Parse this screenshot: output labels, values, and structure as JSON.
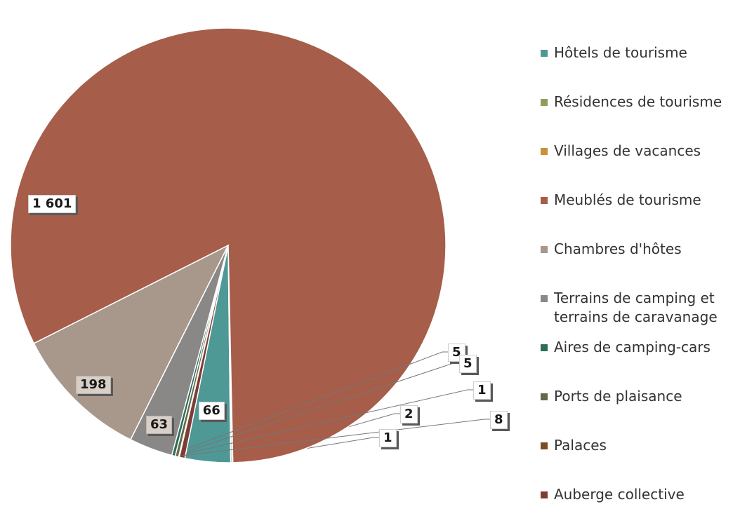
{
  "chart_data": {
    "type": "pie",
    "title": "",
    "categories": [
      "Hôtels de tourisme",
      "Résidences de tourisme",
      "Villages de vacances",
      "Meublés de tourisme",
      "Chambres d'hôtes",
      "Terrains de camping et terrains de caravanage",
      "Aires de camping-cars",
      "Ports de plaisance",
      "Palaces",
      "Auberge collective"
    ],
    "legend_labels": [
      "Hôtels de tourisme",
      "Résidences de tourisme",
      "Villages de vacances",
      "Meublés de tourisme",
      "Chambres d'hôtes",
      "Terrains de camping et\nterrains de caravanage",
      "Aires de camping-cars",
      "Ports de plaisance",
      "Palaces",
      "Auberge collective"
    ],
    "values": [
      66,
      2,
      1,
      1601,
      198,
      63,
      5,
      5,
      1,
      8
    ],
    "value_labels": [
      "66",
      "2",
      "1",
      "1 601",
      "198",
      "63",
      "5",
      "5",
      "1",
      "8"
    ],
    "colors": [
      "#4e9896",
      "#8da05a",
      "#c9923a",
      "#a65d49",
      "#a8988c",
      "#8a8787",
      "#2e6b5c",
      "#5f6b49",
      "#7a4d26",
      "#7e3d33"
    ],
    "legend_position": "right"
  }
}
